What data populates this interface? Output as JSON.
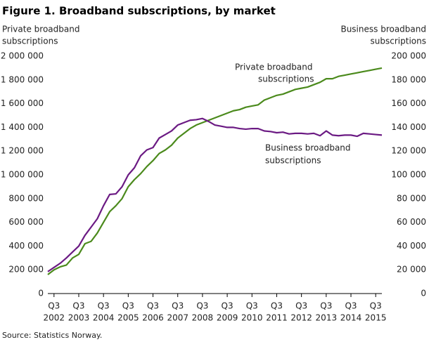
{
  "chart_data": {
    "type": "line",
    "title": "Figure 1. Broadband subscriptions, by market",
    "y_label": [
      "Private broadband",
      "subscriptions"
    ],
    "y2_label": [
      "Business broadband",
      "subscriptions"
    ],
    "source": "Source: Statistics Norway.",
    "annotations": [
      [
        "Private broadband",
        "subscriptions"
      ],
      [
        "Business broadband",
        "subscriptions"
      ]
    ],
    "categories": [
      null,
      {
        "quarter": "Q3",
        "year": "2002"
      },
      null,
      null,
      null,
      {
        "quarter": "Q3",
        "year": "2003"
      },
      null,
      null,
      null,
      {
        "quarter": "Q3",
        "year": "2004"
      },
      null,
      null,
      null,
      {
        "quarter": "Q3",
        "year": "2005"
      },
      null,
      null,
      null,
      {
        "quarter": "Q3",
        "year": "2006"
      },
      null,
      null,
      null,
      {
        "quarter": "Q3",
        "year": "2007"
      },
      null,
      null,
      null,
      {
        "quarter": "Q3",
        "year": "2008"
      },
      null,
      null,
      null,
      {
        "quarter": "Q3",
        "year": "2009"
      },
      null,
      null,
      null,
      {
        "quarter": "Q3",
        "year": "2010"
      },
      null,
      null,
      null,
      {
        "quarter": "Q3",
        "year": "2011"
      },
      null,
      null,
      null,
      {
        "quarter": "Q3",
        "year": "2012"
      },
      null,
      null,
      null,
      {
        "quarter": "Q3",
        "year": "2013"
      },
      null,
      null,
      null,
      {
        "quarter": "Q3",
        "year": "2014"
      },
      null,
      null,
      null,
      {
        "quarter": "Q3",
        "year": "2015"
      },
      null
    ],
    "series": [
      {
        "name": "Private broadband subscriptions",
        "color": "#4b8a1c",
        "axis": "y",
        "values": [
          160000,
          200000,
          225000,
          240000,
          300000,
          330000,
          420000,
          440000,
          510000,
          600000,
          690000,
          740000,
          800000,
          900000,
          960000,
          1010000,
          1070000,
          1120000,
          1180000,
          1210000,
          1250000,
          1310000,
          1350000,
          1390000,
          1420000,
          1440000,
          1460000,
          1480000,
          1500000,
          1520000,
          1540000,
          1550000,
          1570000,
          1580000,
          1590000,
          1630000,
          1650000,
          1670000,
          1680000,
          1700000,
          1720000,
          1730000,
          1740000,
          1760000,
          1780000,
          1810000,
          1810000,
          1830000,
          1840000,
          1850000,
          1860000,
          1870000,
          1880000,
          1890000,
          1900000
        ]
      },
      {
        "name": "Business broadband subscriptions",
        "color": "#6b1a83",
        "axis": "y2",
        "values": [
          18500,
          22000,
          25500,
          30000,
          35000,
          40000,
          49000,
          56000,
          63000,
          74000,
          83500,
          84000,
          90000,
          100000,
          106000,
          116000,
          121000,
          123000,
          131000,
          134000,
          137000,
          142000,
          144000,
          146000,
          146500,
          147500,
          145000,
          142000,
          141000,
          140000,
          140000,
          139000,
          138500,
          139000,
          139000,
          137000,
          136500,
          135500,
          136000,
          134500,
          135000,
          135000,
          134500,
          135000,
          133000,
          137000,
          133500,
          133000,
          133500,
          133500,
          132500,
          135000,
          134500,
          134000,
          133500
        ]
      }
    ],
    "ylim": [
      0,
      2000000
    ],
    "yticks": [
      0,
      {
        "value": 200000,
        "label": "200 000"
      },
      {
        "value": 400000,
        "label": "400 000"
      },
      {
        "value": 600000,
        "label": "600 000"
      },
      {
        "value": 800000,
        "label": "800 000"
      },
      {
        "value": 1000000,
        "label": "1 000 000"
      },
      {
        "value": 1200000,
        "label": "1 200 000"
      },
      {
        "value": 1400000,
        "label": "1 400 000"
      },
      {
        "value": 1600000,
        "label": "1 600 000"
      },
      {
        "value": 1800000,
        "label": "1 800 000"
      },
      {
        "value": 2000000,
        "label": "2 000 000"
      }
    ],
    "y2lim": [
      0,
      200000
    ],
    "y2ticks": [
      0,
      {
        "value": 20000,
        "label": "20 000"
      },
      {
        "value": 40000,
        "label": "40 000"
      },
      {
        "value": 60000,
        "label": "60 000"
      },
      {
        "value": 80000,
        "label": "80 000"
      },
      {
        "value": 100000,
        "label": "100 000"
      },
      {
        "value": 120000,
        "label": "120 000"
      },
      {
        "value": 140000,
        "label": "140 000"
      },
      {
        "value": 160000,
        "label": "160 000"
      },
      {
        "value": 180000,
        "label": "180 000"
      },
      {
        "value": 200000,
        "label": "200 000"
      }
    ],
    "grid": false
  }
}
